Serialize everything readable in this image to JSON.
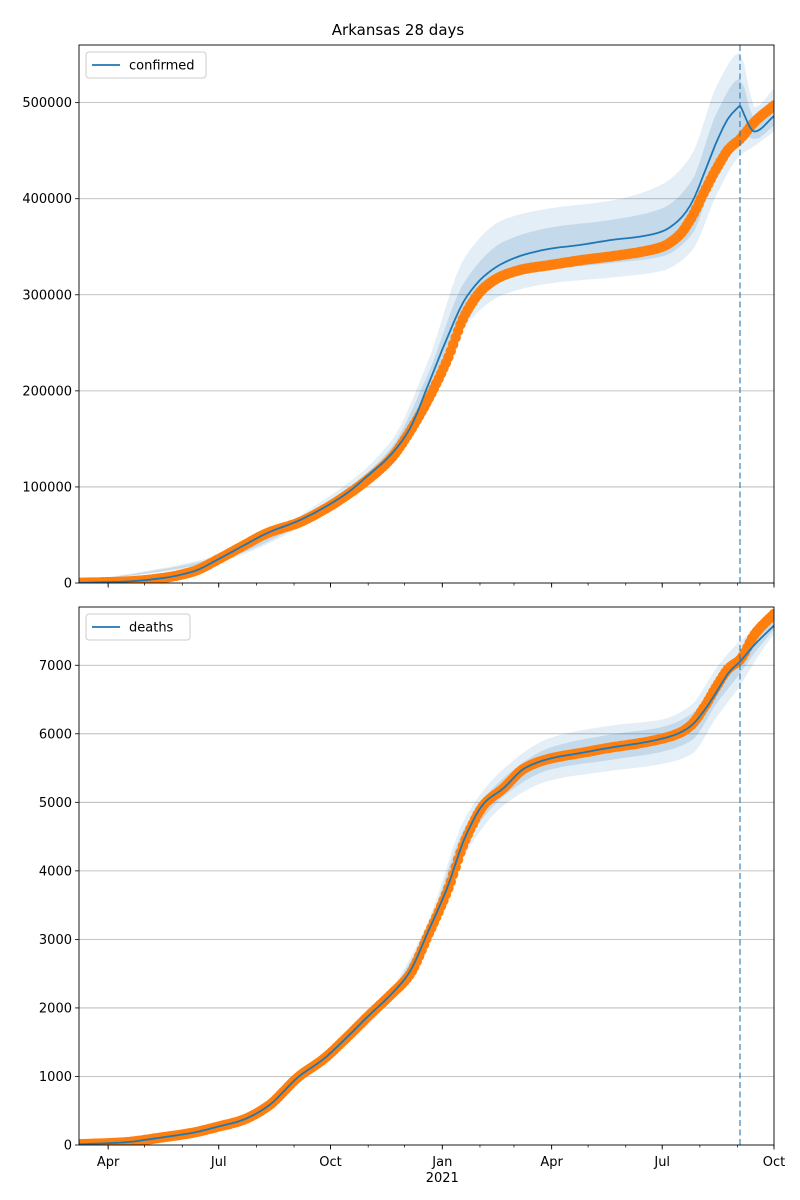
{
  "chart_data": [
    {
      "type": "line",
      "title": "Arkansas 28 days",
      "xlabel": "",
      "ylabel": "",
      "x_axis": {
        "type": "date",
        "range": [
          "2020-03-08",
          "2021-10-01"
        ],
        "tick_labels": [
          {
            "date": "2020-04-01",
            "label": "Apr"
          },
          {
            "date": "2020-07-01",
            "label": "Jul"
          },
          {
            "date": "2020-10-01",
            "label": "Oct"
          },
          {
            "date": "2021-01-01",
            "label": "Jan"
          },
          {
            "date": "2021-04-01",
            "label": "Apr"
          },
          {
            "date": "2021-07-01",
            "label": "Jul"
          },
          {
            "date": "2021-10-01",
            "label": "Oct"
          }
        ],
        "year_label": {
          "date": "2021-01-01",
          "label": "2021"
        }
      },
      "ylim": [
        0,
        560000
      ],
      "yticks": [
        0,
        100000,
        200000,
        300000,
        400000,
        500000
      ],
      "grid": "horizontal",
      "legend": {
        "position": "top-left",
        "entries": [
          "confirmed"
        ]
      },
      "forecast_start": "2021-09-03",
      "colors": {
        "model": "#1f77b4",
        "observed": "#ff7f0e",
        "band": "#1f77b4"
      },
      "series": [
        {
          "name": "confirmed",
          "role": "model",
          "x": [
            "2020-03-08",
            "2020-04-15",
            "2020-05-15",
            "2020-06-10",
            "2020-07-01",
            "2020-07-20",
            "2020-08-10",
            "2020-09-05",
            "2020-09-25",
            "2020-10-15",
            "2020-11-01",
            "2020-11-20",
            "2020-12-05",
            "2020-12-20",
            "2021-01-05",
            "2021-01-20",
            "2021-02-05",
            "2021-02-20",
            "2021-03-10",
            "2021-03-31",
            "2021-04-25",
            "2021-05-20",
            "2021-06-15",
            "2021-07-01",
            "2021-07-15",
            "2021-07-25",
            "2021-08-05",
            "2021-08-15",
            "2021-08-25",
            "2021-09-03",
            "2021-09-15",
            "2021-10-01"
          ],
          "y": [
            200,
            1500,
            5000,
            12000,
            25000,
            38000,
            52000,
            65000,
            78000,
            94000,
            112000,
            134000,
            160000,
            205000,
            255000,
            296000,
            320000,
            333000,
            342000,
            348000,
            352000,
            357000,
            361000,
            366000,
            378000,
            395000,
            428000,
            460000,
            485000,
            497000,
            470000,
            486000
          ]
        },
        {
          "name": "",
          "role": "observed",
          "x": [
            "2020-03-08",
            "2020-04-15",
            "2020-05-15",
            "2020-06-10",
            "2020-07-01",
            "2020-07-20",
            "2020-08-10",
            "2020-09-05",
            "2020-09-25",
            "2020-10-15",
            "2020-11-01",
            "2020-11-20",
            "2020-12-05",
            "2020-12-20",
            "2021-01-05",
            "2021-01-20",
            "2021-02-05",
            "2021-02-20",
            "2021-03-10",
            "2021-03-31",
            "2021-04-25",
            "2021-05-20",
            "2021-06-15",
            "2021-07-01",
            "2021-07-15",
            "2021-07-25",
            "2021-08-05",
            "2021-08-15",
            "2021-08-25",
            "2021-09-03",
            "2021-09-15",
            "2021-10-01"
          ],
          "y": [
            200,
            1500,
            5000,
            12000,
            25000,
            38000,
            52000,
            63000,
            76000,
            92000,
            108000,
            130000,
            157000,
            190000,
            232000,
            280000,
            308000,
            320000,
            327000,
            331000,
            336000,
            340000,
            345000,
            350000,
            362000,
            380000,
            408000,
            432000,
            452000,
            462000,
            480000,
            497000
          ]
        }
      ],
      "bands": [
        {
          "x": [
            "2020-03-08",
            "2020-07-01",
            "2020-09-25",
            "2020-11-20",
            "2020-12-20",
            "2021-01-20",
            "2021-02-20",
            "2021-03-31",
            "2021-05-20",
            "2021-07-01",
            "2021-07-25",
            "2021-08-15",
            "2021-09-03",
            "2021-09-15",
            "2021-10-01"
          ],
          "lower": [
            150,
            22000,
            72000,
            124000,
            185000,
            268000,
            300000,
            312000,
            318000,
            325000,
            345000,
            405000,
            445000,
            455000,
            470000
          ],
          "upper": [
            300,
            29000,
            86000,
            148000,
            230000,
            340000,
            378000,
            390000,
            398000,
            415000,
            445000,
            518000,
            552000,
            495000,
            515000
          ]
        },
        {
          "x": [
            "2020-03-08",
            "2020-07-01",
            "2020-09-25",
            "2020-11-20",
            "2020-12-20",
            "2021-01-20",
            "2021-02-20",
            "2021-03-31",
            "2021-05-20",
            "2021-07-01",
            "2021-07-25",
            "2021-08-15",
            "2021-09-03",
            "2021-09-15",
            "2021-10-01"
          ],
          "lower": [
            180,
            23500,
            75000,
            128000,
            193000,
            282000,
            315000,
            326000,
            333000,
            340000,
            362000,
            430000,
            468000,
            462000,
            476000
          ],
          "upper": [
            250,
            27000,
            82000,
            141000,
            217000,
            315000,
            355000,
            370000,
            378000,
            390000,
            418000,
            490000,
            525000,
            482000,
            500000
          ]
        }
      ]
    },
    {
      "type": "line",
      "title": "",
      "xlabel": "",
      "ylabel": "",
      "x_axis": {
        "type": "date",
        "range": [
          "2020-03-08",
          "2021-10-01"
        ],
        "tick_labels": [
          {
            "date": "2020-04-01",
            "label": "Apr"
          },
          {
            "date": "2020-07-01",
            "label": "Jul"
          },
          {
            "date": "2020-10-01",
            "label": "Oct"
          },
          {
            "date": "2021-01-01",
            "label": "Jan"
          },
          {
            "date": "2021-04-01",
            "label": "Apr"
          },
          {
            "date": "2021-07-01",
            "label": "Jul"
          },
          {
            "date": "2021-10-01",
            "label": "Oct"
          }
        ],
        "year_label": {
          "date": "2021-01-01",
          "label": "2021"
        }
      },
      "ylim": [
        0,
        7850
      ],
      "yticks": [
        0,
        1000,
        2000,
        3000,
        4000,
        5000,
        6000,
        7000
      ],
      "grid": "horizontal",
      "legend": {
        "position": "top-left",
        "entries": [
          "deaths"
        ]
      },
      "forecast_start": "2021-09-03",
      "colors": {
        "model": "#1f77b4",
        "observed": "#ff7f0e",
        "band": "#1f77b4"
      },
      "series": [
        {
          "name": "deaths",
          "role": "model",
          "x": [
            "2020-03-08",
            "2020-04-15",
            "2020-05-15",
            "2020-06-10",
            "2020-07-01",
            "2020-07-20",
            "2020-08-10",
            "2020-09-05",
            "2020-09-25",
            "2020-10-15",
            "2020-11-01",
            "2020-11-20",
            "2020-12-05",
            "2020-12-20",
            "2021-01-05",
            "2021-01-20",
            "2021-02-05",
            "2021-02-20",
            "2021-03-10",
            "2021-03-31",
            "2021-04-25",
            "2021-05-20",
            "2021-06-15",
            "2021-07-01",
            "2021-07-15",
            "2021-07-25",
            "2021-08-05",
            "2021-08-15",
            "2021-08-25",
            "2021-09-03",
            "2021-09-15",
            "2021-10-01"
          ],
          "y": [
            10,
            40,
            110,
            180,
            270,
            360,
            560,
            1000,
            1250,
            1580,
            1880,
            2200,
            2520,
            3100,
            3750,
            4500,
            5000,
            5200,
            5500,
            5640,
            5720,
            5800,
            5870,
            5930,
            6010,
            6120,
            6350,
            6620,
            6900,
            7050,
            7300,
            7580
          ]
        },
        {
          "name": "",
          "role": "observed",
          "x": [
            "2020-03-08",
            "2020-04-15",
            "2020-05-15",
            "2020-06-10",
            "2020-07-01",
            "2020-07-20",
            "2020-08-10",
            "2020-09-05",
            "2020-09-25",
            "2020-10-15",
            "2020-11-01",
            "2020-11-20",
            "2020-12-05",
            "2020-12-20",
            "2021-01-05",
            "2021-01-20",
            "2021-02-05",
            "2021-02-20",
            "2021-03-10",
            "2021-03-31",
            "2021-04-25",
            "2021-05-20",
            "2021-06-15",
            "2021-07-01",
            "2021-07-15",
            "2021-07-25",
            "2021-08-05",
            "2021-08-15",
            "2021-08-25",
            "2021-09-03",
            "2021-09-15",
            "2021-10-01"
          ],
          "y": [
            10,
            40,
            110,
            180,
            270,
            360,
            560,
            1000,
            1250,
            1580,
            1880,
            2200,
            2480,
            3050,
            3700,
            4450,
            4980,
            5200,
            5500,
            5640,
            5720,
            5800,
            5870,
            5930,
            6010,
            6130,
            6400,
            6700,
            6960,
            7080,
            7450,
            7750
          ]
        }
      ],
      "bands": [
        {
          "x": [
            "2020-03-08",
            "2020-07-01",
            "2020-09-25",
            "2020-11-20",
            "2020-12-20",
            "2021-01-20",
            "2021-02-20",
            "2021-03-31",
            "2021-05-20",
            "2021-07-01",
            "2021-07-25",
            "2021-08-15",
            "2021-09-03",
            "2021-09-15",
            "2021-10-01"
          ],
          "lower": [
            5,
            250,
            1200,
            2120,
            2950,
            4250,
            4950,
            5320,
            5460,
            5560,
            5700,
            6250,
            6700,
            7050,
            7460
          ],
          "upper": [
            15,
            290,
            1300,
            2280,
            3250,
            4780,
            5480,
            5940,
            6120,
            6210,
            6420,
            6970,
            7350,
            7500,
            7720
          ]
        },
        {
          "x": [
            "2020-03-08",
            "2020-07-01",
            "2020-09-25",
            "2020-11-20",
            "2020-12-20",
            "2021-01-20",
            "2021-02-20",
            "2021-03-31",
            "2021-05-20",
            "2021-07-01",
            "2021-07-25",
            "2021-08-15",
            "2021-09-03",
            "2021-09-15",
            "2021-10-01"
          ],
          "lower": [
            8,
            260,
            1225,
            2160,
            3020,
            4380,
            5080,
            5480,
            5620,
            5740,
            5900,
            6450,
            6880,
            7180,
            7520
          ],
          "upper": [
            12,
            280,
            1275,
            2240,
            3180,
            4650,
            5350,
            5800,
            5990,
            6100,
            6290,
            6790,
            7200,
            7420,
            7640
          ]
        }
      ]
    }
  ]
}
